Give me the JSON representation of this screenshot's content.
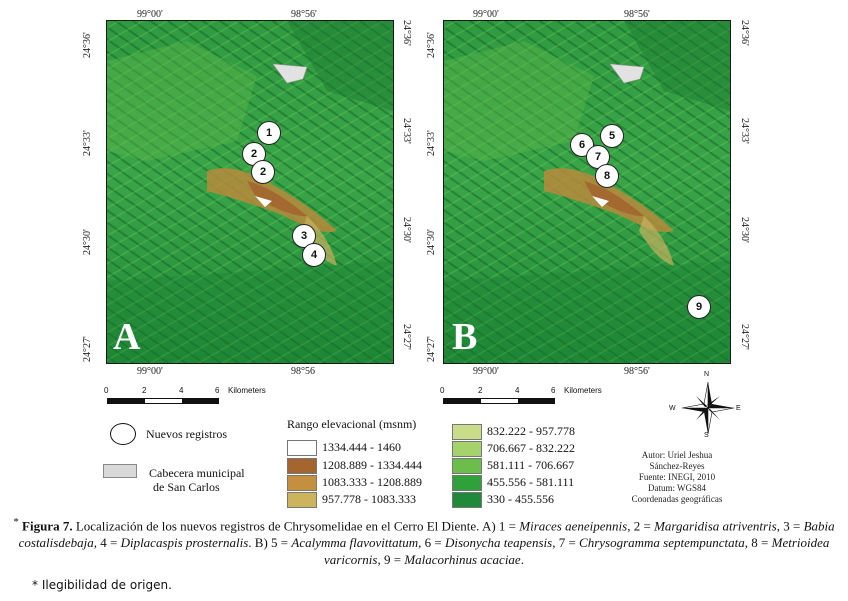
{
  "map_a": {
    "panel_letter": "A",
    "top_coords": [
      "99°00'",
      "98°56'"
    ],
    "bottom_coords": [
      "99°00'",
      "98°56"
    ],
    "left_coords": [
      "24°36'",
      "24°33'",
      "24°30'",
      "24°27'"
    ],
    "right_coords": [
      "24°36'",
      "24°33'",
      "24°30'",
      "24°27'"
    ],
    "markers": [
      "1",
      "2",
      "2",
      "3",
      "4"
    ]
  },
  "map_b": {
    "panel_letter": "B",
    "top_coords": [
      "99°00'",
      "98°56'"
    ],
    "bottom_coords": [
      "99°00'",
      "98°56'"
    ],
    "left_coords": [
      "24°36'",
      "24°33'",
      "24°30'",
      "24°27'"
    ],
    "right_coords": [
      "24°36'",
      "24°33'",
      "24°30'",
      "24°27'"
    ],
    "markers": [
      "5",
      "6",
      "7",
      "8",
      "9"
    ]
  },
  "scale_bar": {
    "ticks": [
      "0",
      "2",
      "4",
      "6"
    ],
    "unit": "Kilometers"
  },
  "legend": {
    "new_records_label": "Nuevos registros",
    "municipal_label_line1": "Cabecera municipal",
    "municipal_label_line2": "de San Carlos",
    "elevation_title": "Rango elevacional (msnm)",
    "ranges_left": [
      {
        "label": "1334.444 - 1460",
        "color": "#ffffff"
      },
      {
        "label": "1208.889 - 1334.444",
        "color": "#a4652f"
      },
      {
        "label": "1083.333 - 1208.889",
        "color": "#c48f3e"
      },
      {
        "label": "957.778 - 1083.333",
        "color": "#ccb35c"
      }
    ],
    "ranges_right": [
      {
        "label": "832.222 - 957.778",
        "color": "#c8dc8a"
      },
      {
        "label": "706.667 - 832.222",
        "color": "#a6d26c"
      },
      {
        "label": "581.111 - 706.667",
        "color": "#6cbe4a"
      },
      {
        "label": "455.556 - 581.111",
        "color": "#2fa03a"
      },
      {
        "label": "330 - 455.556",
        "color": "#1f8a3a"
      }
    ]
  },
  "north_arrow": {
    "n": "N",
    "s": "S",
    "e": "E",
    "w": "W"
  },
  "credits": {
    "line1": "Autor: Uriel Jeshua",
    "line2": "Sánchez-Reyes",
    "line3": "Fuente: INEGI, 2010",
    "line4": "Datum: WGS84",
    "line5": "Coordenadas geográficas"
  },
  "caption": {
    "asterisk": "*",
    "label": "Figura 7.",
    "text_1": " Localización de los nuevos registros de Chrysomelidae en el Cerro El Diente. A) 1 = ",
    "sp1": "Miraces aeneipennis",
    "text_2": ", 2 = ",
    "sp2": "Margaridisa atriventris",
    "text_3": ", 3 = ",
    "sp3": "Babia costalisdebaja",
    "text_4": ", 4 = ",
    "sp4": "Diplacaspis prosternalis",
    "text_5": ". B) 5 = ",
    "sp5": "Acalymma flavovittatum",
    "text_6": ", 6 = ",
    "sp6": "Disonycha teapensis",
    "text_7": ", 7 = ",
    "sp7": "Chrysogramma septempunctata",
    "text_8": ", 8 = ",
    "sp8": "Metrioidea varicornis",
    "text_9": ", 9 = ",
    "sp9": "Malacorhinus acaciae",
    "text_10": "."
  },
  "footnote": "* Ilegibilidad de origen."
}
